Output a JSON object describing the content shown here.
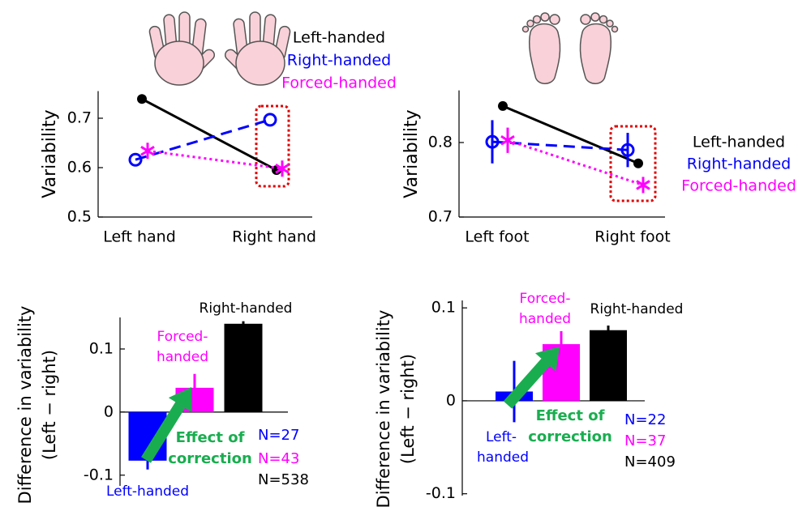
{
  "chart_data": [
    {
      "type": "line",
      "categories": [
        "Left hand",
        "Right hand"
      ],
      "ylabel": "Variability",
      "ylim": [
        0.5,
        0.755
      ],
      "yticks": [
        0.5,
        0.6,
        0.7
      ],
      "legend": "top",
      "series": [
        {
          "name": "Left-handed",
          "color": "#000000",
          "values": [
            0.739,
            0.595
          ],
          "marker": "filled-circle",
          "linestyle": "solid"
        },
        {
          "name": "Right-handed",
          "color": "#0000ff",
          "values": [
            0.616,
            0.697
          ],
          "marker": "open-circle",
          "linestyle": "dashed"
        },
        {
          "name": "Forced-handed",
          "color": "#ff00ff",
          "values": [
            0.634,
            0.598
          ],
          "marker": "asterisk",
          "linestyle": "dotted"
        }
      ]
    },
    {
      "type": "line",
      "categories": [
        "Left foot",
        "Right foot"
      ],
      "ylabel": "Variability",
      "ylim": [
        0.7,
        0.87
      ],
      "yticks": [
        0.7,
        0.8
      ],
      "legend": "right",
      "series": [
        {
          "name": "Left-handed",
          "color": "#000000",
          "values": [
            0.849,
            0.772
          ],
          "marker": "filled-circle",
          "linestyle": "solid"
        },
        {
          "name": "Right-handed",
          "color": "#0000ff",
          "values": [
            0.801,
            0.79
          ],
          "errors": [
            0.029,
            0.023
          ],
          "marker": "open-circle",
          "linestyle": "dashed"
        },
        {
          "name": "Forced-handed",
          "color": "#ff00ff",
          "values": [
            0.803,
            0.743
          ],
          "errors": [
            0.017,
            0.01
          ],
          "marker": "asterisk",
          "linestyle": "dotted"
        }
      ]
    },
    {
      "type": "bar",
      "categories": [
        "Left-handed",
        "Forced-handed",
        "Right-handed"
      ],
      "colors": [
        "#0000ff",
        "#ff00ff",
        "#000000"
      ],
      "values": [
        -0.077,
        0.0385,
        0.14
      ],
      "errors": [
        0.014,
        0.022,
        0.004
      ],
      "ylabel": [
        "Difference in variability",
        "(Left − right)"
      ],
      "ylim": [
        -0.117,
        0.15
      ],
      "yticks": [
        -0.1,
        0,
        0.1
      ],
      "annotation": "Effect of correction",
      "sample_sizes": [
        "N=27",
        "N=43",
        "N=538"
      ]
    },
    {
      "type": "bar",
      "categories": [
        "Left-handed",
        "Forced-handed",
        "Right-handed"
      ],
      "colors": [
        "#0000ff",
        "#ff00ff",
        "#000000"
      ],
      "values": [
        0.01,
        0.061,
        0.076
      ],
      "errors": [
        0.033,
        0.014,
        0.005
      ],
      "ylabel": [
        "Difference in variability",
        "(Left − right)"
      ],
      "ylim": [
        -0.102,
        0.108
      ],
      "yticks": [
        -0.1,
        0,
        0.1
      ],
      "annotation": "Effect of correction",
      "sample_sizes": [
        "N=22",
        "N=37",
        "N=409"
      ]
    }
  ]
}
